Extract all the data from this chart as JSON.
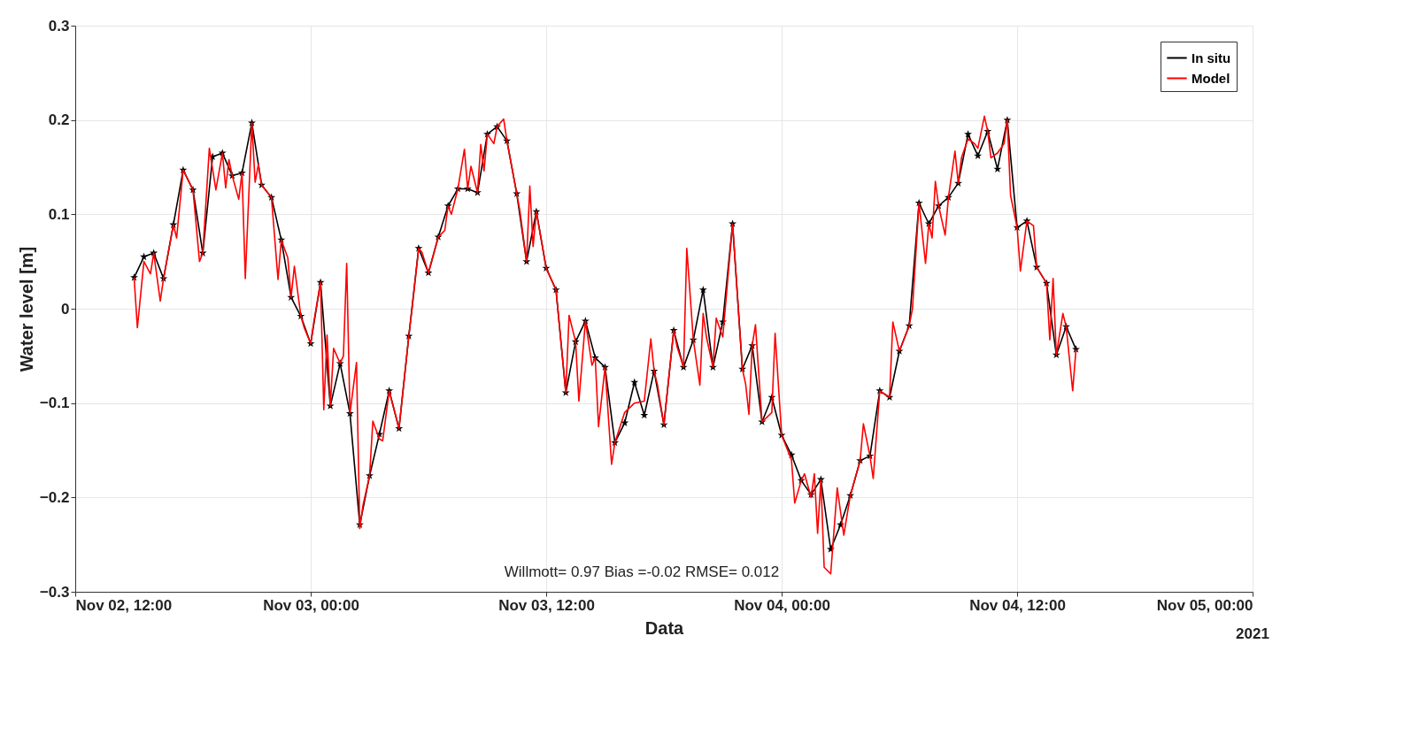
{
  "chart_data": {
    "type": "line",
    "xlabel": "Data",
    "ylabel": "Water level [m]",
    "xlim": [
      "2021-11-02T12:00",
      "2021-11-05T00:00"
    ],
    "xticks": [
      {
        "value": "2021-11-02T12:00",
        "label": "Nov 02, 12:00"
      },
      {
        "value": "2021-11-03T00:00",
        "label": "Nov 03, 00:00"
      },
      {
        "value": "2021-11-03T12:00",
        "label": "Nov 03, 12:00"
      },
      {
        "value": "2021-11-04T00:00",
        "label": "Nov 04, 00:00"
      },
      {
        "value": "2021-11-04T12:00",
        "label": "Nov 04, 12:00"
      },
      {
        "value": "2021-11-05T00:00",
        "label": "Nov 05, 00:00"
      }
    ],
    "ylim": [
      -0.3,
      0.3
    ],
    "yticks": [
      -0.3,
      -0.2,
      -0.1,
      0,
      0.1,
      0.2,
      0.3
    ],
    "grid": true,
    "legend": "top right",
    "annotations": [
      "Willmott= 0.97  Bias =-0.02 RMSE= 0.012",
      "2021"
    ],
    "series": [
      {
        "name": "In situ",
        "color": "#000000",
        "marker": "star",
        "x": [
          "2021-11-02T15:00",
          "2021-11-02T15:30",
          "2021-11-02T16:00",
          "2021-11-02T16:30",
          "2021-11-02T17:00",
          "2021-11-02T17:30",
          "2021-11-02T18:00",
          "2021-11-02T18:30",
          "2021-11-02T19:00",
          "2021-11-02T19:30",
          "2021-11-02T20:00",
          "2021-11-02T20:30",
          "2021-11-02T21:00",
          "2021-11-02T21:30",
          "2021-11-02T22:00",
          "2021-11-02T22:30",
          "2021-11-02T23:00",
          "2021-11-02T23:30",
          "2021-11-03T00:00",
          "2021-11-03T00:30",
          "2021-11-03T01:00",
          "2021-11-03T01:30",
          "2021-11-03T02:00",
          "2021-11-03T02:30",
          "2021-11-03T03:00",
          "2021-11-03T03:30",
          "2021-11-03T04:00",
          "2021-11-03T04:30",
          "2021-11-03T05:00",
          "2021-11-03T05:30",
          "2021-11-03T06:00",
          "2021-11-03T06:30",
          "2021-11-03T07:00",
          "2021-11-03T07:30",
          "2021-11-03T08:00",
          "2021-11-03T08:30",
          "2021-11-03T09:00",
          "2021-11-03T09:30",
          "2021-11-03T10:00",
          "2021-11-03T10:30",
          "2021-11-03T11:00",
          "2021-11-03T11:30",
          "2021-11-03T12:00",
          "2021-11-03T12:30",
          "2021-11-03T13:00",
          "2021-11-03T13:30",
          "2021-11-03T14:00",
          "2021-11-03T14:30",
          "2021-11-03T15:00",
          "2021-11-03T15:30",
          "2021-11-03T16:00",
          "2021-11-03T16:30",
          "2021-11-03T17:00",
          "2021-11-03T17:30",
          "2021-11-03T18:00",
          "2021-11-03T18:30",
          "2021-11-03T19:00",
          "2021-11-03T19:30",
          "2021-11-03T20:00",
          "2021-11-03T20:30",
          "2021-11-03T21:00",
          "2021-11-03T21:30",
          "2021-11-03T22:00",
          "2021-11-03T22:30",
          "2021-11-03T23:00",
          "2021-11-03T23:30",
          "2021-11-04T00:00",
          "2021-11-04T00:30",
          "2021-11-04T01:00",
          "2021-11-04T01:30",
          "2021-11-04T02:00",
          "2021-11-04T02:30",
          "2021-11-04T03:00",
          "2021-11-04T03:30",
          "2021-11-04T04:00",
          "2021-11-04T04:30",
          "2021-11-04T05:00",
          "2021-11-04T05:30",
          "2021-11-04T06:00",
          "2021-11-04T06:30",
          "2021-11-04T07:00",
          "2021-11-04T07:30",
          "2021-11-04T08:00",
          "2021-11-04T08:30",
          "2021-11-04T09:00",
          "2021-11-04T09:30",
          "2021-11-04T10:00",
          "2021-11-04T10:30",
          "2021-11-04T11:00",
          "2021-11-04T11:30",
          "2021-11-04T12:00",
          "2021-11-04T12:30",
          "2021-11-04T13:00",
          "2021-11-04T13:30",
          "2021-11-04T14:00",
          "2021-11-04T14:30",
          "2021-11-04T15:00"
        ],
        "values": [
          0.033,
          0.055,
          0.059,
          0.032,
          0.089,
          0.147,
          0.126,
          0.059,
          0.161,
          0.165,
          0.141,
          0.144,
          0.197,
          0.131,
          0.118,
          0.073,
          0.012,
          -0.008,
          -0.037,
          0.028,
          -0.103,
          -0.058,
          -0.111,
          -0.229,
          -0.177,
          -0.133,
          -0.087,
          -0.127,
          -0.029,
          0.064,
          0.038,
          0.076,
          0.109,
          0.127,
          0.127,
          0.123,
          0.185,
          0.193,
          0.178,
          0.122,
          0.05,
          0.103,
          0.043,
          0.02,
          -0.089,
          -0.035,
          -0.013,
          -0.052,
          -0.062,
          -0.142,
          -0.121,
          -0.078,
          -0.113,
          -0.066,
          -0.123,
          -0.023,
          -0.062,
          -0.033,
          0.02,
          -0.062,
          -0.014,
          0.09,
          -0.064,
          -0.039,
          -0.12,
          -0.094,
          -0.134,
          -0.155,
          -0.182,
          -0.197,
          -0.181,
          -0.255,
          -0.229,
          -0.198,
          -0.161,
          -0.156,
          -0.087,
          -0.094,
          -0.045,
          -0.018,
          0.112,
          0.09,
          0.109,
          0.118,
          0.133,
          0.185,
          0.162,
          0.188,
          0.148,
          0.2,
          0.086,
          0.093,
          0.044,
          0.027,
          -0.049,
          -0.019,
          -0.043
        ]
      },
      {
        "name": "Model",
        "color": "#ff0000",
        "x": [
          "2021-11-02T15:00",
          "2021-11-02T15:10",
          "2021-11-02T15:30",
          "2021-11-02T15:50",
          "2021-11-02T16:00",
          "2021-11-02T16:20",
          "2021-11-02T16:30",
          "2021-11-02T17:00",
          "2021-11-02T17:10",
          "2021-11-02T17:30",
          "2021-11-02T18:00",
          "2021-11-02T18:20",
          "2021-11-02T18:30",
          "2021-11-02T18:50",
          "2021-11-02T19:10",
          "2021-11-02T19:30",
          "2021-11-02T19:40",
          "2021-11-02T19:50",
          "2021-11-02T20:00",
          "2021-11-02T20:20",
          "2021-11-02T20:30",
          "2021-11-02T20:40",
          "2021-11-02T21:00",
          "2021-11-02T21:10",
          "2021-11-02T21:20",
          "2021-11-02T21:30",
          "2021-11-02T22:00",
          "2021-11-02T22:20",
          "2021-11-02T22:30",
          "2021-11-02T22:50",
          "2021-11-02T23:00",
          "2021-11-02T23:10",
          "2021-11-02T23:30",
          "2021-11-02T23:40",
          "2021-11-03T00:00",
          "2021-11-03T00:10",
          "2021-11-03T00:30",
          "2021-11-03T00:40",
          "2021-11-03T00:50",
          "2021-11-03T01:00",
          "2021-11-03T01:10",
          "2021-11-03T01:30",
          "2021-11-03T01:40",
          "2021-11-03T01:50",
          "2021-11-03T02:00",
          "2021-11-03T02:20",
          "2021-11-03T02:30",
          "2021-11-03T02:40",
          "2021-11-03T03:00",
          "2021-11-03T03:10",
          "2021-11-03T03:30",
          "2021-11-03T03:40",
          "2021-11-03T04:00",
          "2021-11-03T04:30",
          "2021-11-03T05:00",
          "2021-11-03T05:10",
          "2021-11-03T05:30",
          "2021-11-03T05:40",
          "2021-11-03T06:00",
          "2021-11-03T06:30",
          "2021-11-03T06:50",
          "2021-11-03T07:00",
          "2021-11-03T07:10",
          "2021-11-03T07:30",
          "2021-11-03T07:50",
          "2021-11-03T08:00",
          "2021-11-03T08:10",
          "2021-11-03T08:30",
          "2021-11-03T08:40",
          "2021-11-03T08:50",
          "2021-11-03T09:00",
          "2021-11-03T09:20",
          "2021-11-03T09:30",
          "2021-11-03T09:50",
          "2021-11-03T10:00",
          "2021-11-03T10:30",
          "2021-11-03T10:40",
          "2021-11-03T11:00",
          "2021-11-03T11:10",
          "2021-11-03T11:20",
          "2021-11-03T11:30",
          "2021-11-03T12:00",
          "2021-11-03T12:30",
          "2021-11-03T12:40",
          "2021-11-03T13:00",
          "2021-11-03T13:10",
          "2021-11-03T13:30",
          "2021-11-03T13:40",
          "2021-11-03T14:00",
          "2021-11-03T14:20",
          "2021-11-03T14:30",
          "2021-11-03T14:40",
          "2021-11-03T15:00",
          "2021-11-03T15:20",
          "2021-11-03T15:30",
          "2021-11-03T16:00",
          "2021-11-03T16:30",
          "2021-11-03T17:00",
          "2021-11-03T17:20",
          "2021-11-03T17:30",
          "2021-11-03T17:40",
          "2021-11-03T18:00",
          "2021-11-03T18:30",
          "2021-11-03T18:40",
          "2021-11-03T19:00",
          "2021-11-03T19:10",
          "2021-11-03T19:30",
          "2021-11-03T19:50",
          "2021-11-03T20:00",
          "2021-11-03T20:10",
          "2021-11-03T20:30",
          "2021-11-03T20:40",
          "2021-11-03T21:00",
          "2021-11-03T21:30",
          "2021-11-03T22:00",
          "2021-11-03T22:10",
          "2021-11-03T22:20",
          "2021-11-03T22:30",
          "2021-11-03T22:40",
          "2021-11-03T23:00",
          "2021-11-03T23:30",
          "2021-11-03T23:40",
          "2021-11-04T00:00",
          "2021-11-04T00:30",
          "2021-11-04T00:40",
          "2021-11-04T01:00",
          "2021-11-04T01:10",
          "2021-11-04T01:30",
          "2021-11-04T01:40",
          "2021-11-04T01:50",
          "2021-11-04T02:00",
          "2021-11-04T02:10",
          "2021-11-04T02:30",
          "2021-11-04T02:50",
          "2021-11-04T03:10",
          "2021-11-04T03:30",
          "2021-11-04T04:00",
          "2021-11-04T04:10",
          "2021-11-04T04:30",
          "2021-11-04T04:40",
          "2021-11-04T05:00",
          "2021-11-04T05:30",
          "2021-11-04T05:40",
          "2021-11-04T06:00",
          "2021-11-04T06:30",
          "2021-11-04T06:40",
          "2021-11-04T07:00",
          "2021-11-04T07:20",
          "2021-11-04T07:30",
          "2021-11-04T07:40",
          "2021-11-04T07:50",
          "2021-11-04T08:00",
          "2021-11-04T08:20",
          "2021-11-04T08:30",
          "2021-11-04T08:50",
          "2021-11-04T09:00",
          "2021-11-04T09:10",
          "2021-11-04T09:30",
          "2021-11-04T09:50",
          "2021-11-04T10:00",
          "2021-11-04T10:20",
          "2021-11-04T10:30",
          "2021-11-04T10:40",
          "2021-11-04T11:00",
          "2021-11-04T11:20",
          "2021-11-04T11:30",
          "2021-11-04T11:40",
          "2021-11-04T12:00",
          "2021-11-04T12:10",
          "2021-11-04T12:30",
          "2021-11-04T12:50",
          "2021-11-04T13:00",
          "2021-11-04T13:30",
          "2021-11-04T13:40",
          "2021-11-04T13:50",
          "2021-11-04T14:00",
          "2021-11-04T14:20",
          "2021-11-04T14:30",
          "2021-11-04T14:50",
          "2021-11-04T15:00"
        ],
        "values": [
          0.033,
          -0.02,
          0.05,
          0.037,
          0.059,
          0.008,
          0.032,
          0.089,
          0.075,
          0.147,
          0.126,
          0.05,
          0.059,
          0.17,
          0.126,
          0.165,
          0.128,
          0.158,
          0.141,
          0.116,
          0.144,
          0.032,
          0.197,
          0.134,
          0.153,
          0.131,
          0.118,
          0.031,
          0.073,
          0.054,
          0.012,
          0.045,
          -0.008,
          -0.02,
          -0.037,
          -0.013,
          0.028,
          -0.107,
          -0.028,
          -0.103,
          -0.042,
          -0.058,
          -0.05,
          0.048,
          -0.111,
          -0.057,
          -0.233,
          -0.208,
          -0.177,
          -0.119,
          -0.138,
          -0.14,
          -0.087,
          -0.127,
          -0.029,
          0.0,
          0.064,
          0.06,
          0.038,
          0.076,
          0.083,
          0.109,
          0.1,
          0.127,
          0.169,
          0.127,
          0.151,
          0.123,
          0.174,
          0.146,
          0.185,
          0.175,
          0.193,
          0.201,
          0.178,
          0.122,
          0.103,
          0.05,
          0.13,
          0.066,
          0.103,
          0.043,
          0.02,
          -0.016,
          -0.089,
          -0.007,
          -0.035,
          -0.098,
          -0.013,
          -0.06,
          -0.052,
          -0.125,
          -0.062,
          -0.165,
          -0.142,
          -0.11,
          -0.1,
          -0.098,
          -0.032,
          -0.066,
          -0.08,
          -0.123,
          -0.023,
          -0.04,
          -0.062,
          0.064,
          -0.033,
          -0.081,
          -0.005,
          -0.03,
          -0.062,
          -0.01,
          -0.03,
          0.09,
          -0.064,
          -0.08,
          -0.112,
          -0.039,
          -0.017,
          -0.12,
          -0.11,
          -0.026,
          -0.134,
          -0.16,
          -0.206,
          -0.182,
          -0.175,
          -0.2,
          -0.175,
          -0.238,
          -0.181,
          -0.274,
          -0.281,
          -0.19,
          -0.24,
          -0.198,
          -0.161,
          -0.122,
          -0.156,
          -0.18,
          -0.087,
          -0.094,
          -0.014,
          -0.045,
          -0.018,
          0.0,
          0.112,
          0.048,
          0.09,
          0.075,
          0.135,
          0.109,
          0.078,
          0.118,
          0.167,
          0.133,
          0.16,
          0.18,
          0.175,
          0.17,
          0.204,
          0.188,
          0.16,
          0.165,
          0.175,
          0.2,
          0.12,
          0.086,
          0.04,
          0.093,
          0.088,
          0.044,
          0.027,
          -0.033,
          0.032,
          -0.049,
          -0.005,
          -0.019,
          -0.087,
          -0.043
        ]
      }
    ]
  }
}
